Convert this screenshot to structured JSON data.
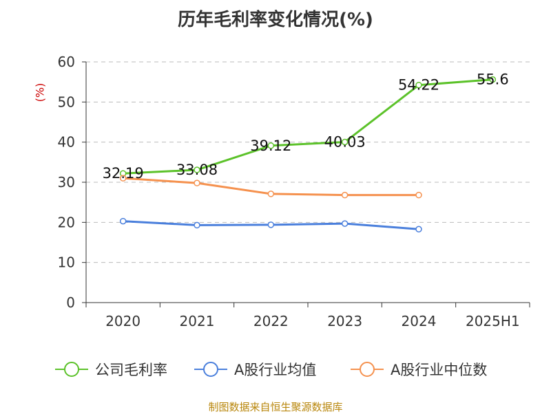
{
  "title": "历年毛利率变化情况(%)",
  "unit_label": "(%)",
  "source": "制图数据来自恒生聚源数据库",
  "colors": {
    "gross_margin": "#5cc22a",
    "industry_avg": "#4a7fdc",
    "industry_median": "#f5914e"
  },
  "chart_data": {
    "type": "line",
    "title": "历年毛利率变化情况(%)",
    "ylabel": "(%)",
    "ylim": [
      0,
      60
    ],
    "yticks": [
      0,
      10,
      20,
      30,
      40,
      50,
      60
    ],
    "grid": true,
    "legend_position": "bottom",
    "categories": [
      "2020",
      "2021",
      "2022",
      "2023",
      "2024",
      "2025H1"
    ],
    "series": [
      {
        "name": "公司毛利率",
        "color": "#5cc22a",
        "values": [
          32.19,
          33.08,
          39.12,
          40.03,
          54.22,
          55.6
        ],
        "labels": [
          "32.19",
          "33.08",
          "39.12",
          "40.03",
          "54.22",
          "55.6"
        ]
      },
      {
        "name": "A股行业均值",
        "color": "#4a7fdc",
        "values": [
          20.3,
          19.3,
          19.4,
          19.7,
          18.3,
          null
        ]
      },
      {
        "name": "A股行业中位数",
        "color": "#f5914e",
        "values": [
          31.0,
          29.8,
          27.1,
          26.8,
          26.8,
          null
        ]
      }
    ]
  }
}
